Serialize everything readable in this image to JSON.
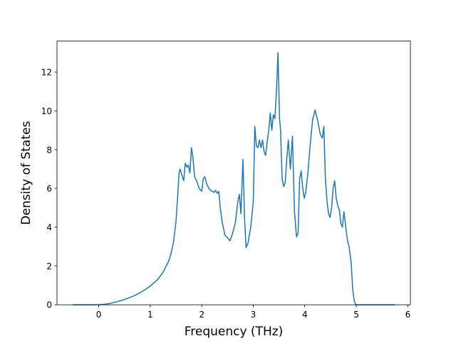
{
  "chart_data": {
    "type": "line",
    "title": "",
    "xlabel": "Frequency (THz)",
    "ylabel": "Density of States",
    "xlim": [
      -0.81,
      6.05
    ],
    "ylim": [
      0,
      13.6
    ],
    "xticks": [
      0,
      1,
      2,
      3,
      4,
      5,
      6
    ],
    "yticks": [
      0,
      2,
      4,
      6,
      8,
      10,
      12
    ],
    "grid": false,
    "legend": "none",
    "line_color": "#1f77b4",
    "series": [
      {
        "x": [
          -0.5,
          0.0,
          0.1,
          0.2,
          0.3,
          0.4,
          0.5,
          0.6,
          0.7,
          0.8,
          0.9,
          1.0,
          1.1,
          1.15,
          1.2,
          1.25,
          1.3,
          1.35,
          1.4,
          1.45,
          1.5,
          1.53,
          1.56,
          1.58,
          1.6,
          1.65,
          1.68,
          1.71,
          1.74,
          1.77,
          1.8,
          1.83,
          1.86,
          1.9,
          1.95,
          2.0,
          2.03,
          2.06,
          2.1,
          2.15,
          2.2,
          2.24,
          2.27,
          2.3,
          2.33,
          2.36,
          2.4,
          2.45,
          2.5,
          2.55,
          2.6,
          2.65,
          2.7,
          2.73,
          2.76,
          2.8,
          2.83,
          2.86,
          2.9,
          2.95,
          3.0,
          3.03,
          3.06,
          3.09,
          3.12,
          3.15,
          3.18,
          3.21,
          3.24,
          3.27,
          3.3,
          3.33,
          3.36,
          3.39,
          3.42,
          3.45,
          3.48,
          3.51,
          3.53,
          3.56,
          3.59,
          3.62,
          3.65,
          3.68,
          3.72,
          3.76,
          3.8,
          3.84,
          3.87,
          3.9,
          3.93,
          3.96,
          3.99,
          4.02,
          4.06,
          4.1,
          4.15,
          4.2,
          4.25,
          4.3,
          4.34,
          4.37,
          4.4,
          4.43,
          4.46,
          4.49,
          4.52,
          4.55,
          4.58,
          4.61,
          4.64,
          4.67,
          4.7,
          4.73,
          4.76,
          4.8,
          4.83,
          4.86,
          4.9,
          4.93,
          4.96,
          4.99,
          5.02,
          5.05,
          5.1,
          5.13,
          5.16,
          5.18,
          5.2,
          5.25,
          5.5,
          5.75
        ],
        "y": [
          0,
          0,
          0.02,
          0.06,
          0.12,
          0.19,
          0.27,
          0.37,
          0.48,
          0.62,
          0.78,
          0.96,
          1.2,
          1.32,
          1.5,
          1.68,
          1.95,
          2.2,
          2.6,
          3.2,
          4.3,
          5.5,
          6.8,
          7.0,
          6.8,
          6.4,
          7.3,
          7.1,
          7.2,
          6.8,
          8.1,
          7.6,
          6.6,
          6.4,
          6.0,
          5.85,
          6.5,
          6.6,
          6.2,
          5.95,
          5.85,
          5.8,
          5.9,
          5.75,
          5.85,
          5.0,
          4.2,
          3.6,
          3.45,
          3.3,
          3.7,
          4.2,
          5.3,
          5.7,
          4.7,
          7.5,
          4.5,
          2.95,
          3.2,
          4.0,
          5.3,
          9.2,
          8.2,
          8.1,
          8.5,
          8.1,
          8.5,
          7.9,
          7.7,
          8.4,
          9.0,
          9.9,
          9.0,
          9.8,
          9.6,
          11.0,
          13.0,
          9.6,
          9.0,
          6.5,
          6.1,
          6.3,
          7.5,
          8.5,
          7.0,
          8.7,
          4.8,
          3.5,
          3.7,
          6.5,
          6.9,
          6.0,
          5.5,
          5.8,
          6.8,
          8.1,
          9.5,
          10.05,
          9.5,
          8.8,
          8.6,
          9.2,
          6.5,
          5.4,
          4.7,
          4.5,
          5.0,
          6.0,
          6.4,
          5.5,
          5.1,
          4.9,
          4.2,
          4.0,
          4.8,
          3.9,
          3.3,
          3.0,
          2.2,
          0.8,
          0.2,
          0,
          0,
          0,
          0,
          0,
          0,
          0,
          0,
          0,
          0,
          0
        ]
      }
    ]
  }
}
